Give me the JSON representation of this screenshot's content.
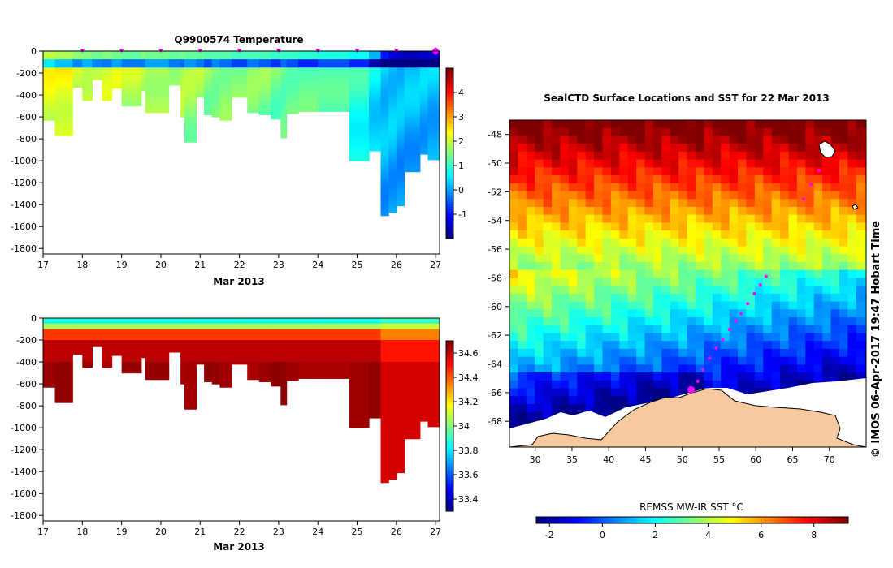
{
  "chart_data": [
    {
      "id": "temperature",
      "type": "heatmap",
      "title": "Q9900574  Temperature",
      "xlabel": "Mar 2013",
      "ylabel": "",
      "x_ticks": [
        "17",
        "18",
        "19",
        "20",
        "21",
        "22",
        "23",
        "24",
        "25",
        "26",
        "27"
      ],
      "xlim": [
        17,
        27.1
      ],
      "y_ticks": [
        "0",
        "-200",
        "-400",
        "-600",
        "-800",
        "-1000",
        "-1200",
        "-1400",
        "-1600",
        "-1800"
      ],
      "ylim": [
        -1850,
        0
      ],
      "colorbar_ticks": [
        "4",
        "3",
        "2",
        "1",
        "0",
        "-1"
      ],
      "colorbar_range": [
        -2,
        5
      ],
      "marker_days": [
        18,
        19,
        20,
        21,
        22,
        23,
        24,
        25,
        26,
        27
      ],
      "profiles": [
        {
          "day": 17.0,
          "bottom": -630,
          "surface": 1.9,
          "deep": 2.3
        },
        {
          "day": 17.3,
          "bottom": -770,
          "surface": 1.8,
          "deep": 2.4
        },
        {
          "day": 17.75,
          "bottom": -330,
          "surface": 1.6,
          "deep": 2.2
        },
        {
          "day": 18.0,
          "bottom": -450,
          "surface": 1.5,
          "deep": 2.2
        },
        {
          "day": 18.25,
          "bottom": -260,
          "surface": 1.4,
          "deep": 2.2
        },
        {
          "day": 18.5,
          "bottom": -450,
          "surface": 1.5,
          "deep": 2.1
        },
        {
          "day": 18.75,
          "bottom": -340,
          "surface": 1.4,
          "deep": 2.1
        },
        {
          "day": 19.0,
          "bottom": -500,
          "surface": 1.3,
          "deep": 2.0
        },
        {
          "day": 19.5,
          "bottom": -360,
          "surface": 1.5,
          "deep": 2.0
        },
        {
          "day": 19.6,
          "bottom": -560,
          "surface": 1.4,
          "deep": 2.0
        },
        {
          "day": 20.2,
          "bottom": -310,
          "surface": 1.3,
          "deep": 1.9
        },
        {
          "day": 20.5,
          "bottom": -600,
          "surface": 1.4,
          "deep": 1.9
        },
        {
          "day": 20.6,
          "bottom": -830,
          "surface": 1.3,
          "deep": 1.8
        },
        {
          "day": 20.9,
          "bottom": -420,
          "surface": 1.3,
          "deep": 1.8
        },
        {
          "day": 21.1,
          "bottom": -580,
          "surface": 1.2,
          "deep": 1.7
        },
        {
          "day": 21.3,
          "bottom": -600,
          "surface": 1.2,
          "deep": 1.7
        },
        {
          "day": 21.5,
          "bottom": -630,
          "surface": 1.2,
          "deep": 1.7
        },
        {
          "day": 21.8,
          "bottom": -420,
          "surface": 1.1,
          "deep": 1.6
        },
        {
          "day": 22.2,
          "bottom": -560,
          "surface": 1.1,
          "deep": 1.6
        },
        {
          "day": 22.5,
          "bottom": -580,
          "surface": 1.1,
          "deep": 1.6
        },
        {
          "day": 22.8,
          "bottom": -620,
          "surface": 1.0,
          "deep": 1.5
        },
        {
          "day": 23.05,
          "bottom": -790,
          "surface": 1.0,
          "deep": 1.5
        },
        {
          "day": 23.2,
          "bottom": -570,
          "surface": 1.0,
          "deep": 1.5
        },
        {
          "day": 23.5,
          "bottom": -550,
          "surface": 0.9,
          "deep": 1.4
        },
        {
          "day": 24.0,
          "bottom": -550,
          "surface": 0.8,
          "deep": 1.2
        },
        {
          "day": 24.8,
          "bottom": -1000,
          "surface": 0.7,
          "deep": 1.0
        },
        {
          "day": 25.3,
          "bottom": -910,
          "surface": 0.1,
          "deep": 0.6
        },
        {
          "day": 25.6,
          "bottom": -1500,
          "surface": -1.0,
          "deep": 0.4
        },
        {
          "day": 25.8,
          "bottom": -1470,
          "surface": -1.4,
          "deep": 0.4
        },
        {
          "day": 26.0,
          "bottom": -1410,
          "surface": -1.5,
          "deep": 0.3
        },
        {
          "day": 26.2,
          "bottom": -1100,
          "surface": -1.6,
          "deep": 0.3
        },
        {
          "day": 26.6,
          "bottom": -940,
          "surface": -1.5,
          "deep": 0.3
        },
        {
          "day": 26.8,
          "bottom": -990,
          "surface": -1.5,
          "deep": 0.3
        }
      ]
    },
    {
      "id": "salinity",
      "type": "heatmap",
      "title": "",
      "xlabel": "Mar 2013",
      "ylabel": "",
      "x_ticks": [
        "17",
        "18",
        "19",
        "20",
        "21",
        "22",
        "23",
        "24",
        "25",
        "26",
        "27"
      ],
      "xlim": [
        17,
        27.1
      ],
      "y_ticks": [
        "0",
        "-200",
        "-400",
        "-600",
        "-800",
        "-1000",
        "-1200",
        "-1400",
        "-1600",
        "-1800"
      ],
      "ylim": [
        -1850,
        0
      ],
      "colorbar_ticks": [
        "34.6",
        "34.4",
        "34.2",
        "34",
        "33.8",
        "33.6",
        "33.4"
      ],
      "colorbar_range": [
        33.3,
        34.7
      ]
    },
    {
      "id": "sst-map",
      "type": "heatmap",
      "title": "SealCTD Surface Locations and SST for 22 Mar 2013",
      "xlabel": "",
      "ylabel": "",
      "x_ticks": [
        "30",
        "35",
        "40",
        "45",
        "50",
        "55",
        "60",
        "65",
        "70"
      ],
      "xlim": [
        26.5,
        75
      ],
      "y_ticks": [
        "-48",
        "-50",
        "-52",
        "-54",
        "-56",
        "-58",
        "-60",
        "-62",
        "-64",
        "-66",
        "-68"
      ],
      "ylim": [
        -69.8,
        -47
      ],
      "colorbar_label": "REMSS MW-IR SST °C",
      "colorbar_ticks": [
        "-2",
        "0",
        "2",
        "4",
        "6",
        "8"
      ],
      "colorbar_range": [
        -2.5,
        9.3
      ],
      "track": [
        {
          "lon": 51.2,
          "lat": -65.8
        },
        {
          "lon": 52.1,
          "lat": -65.2
        },
        {
          "lon": 52.8,
          "lat": -64.4
        },
        {
          "lon": 53.7,
          "lat": -63.6
        },
        {
          "lon": 54.6,
          "lat": -62.9
        },
        {
          "lon": 55.5,
          "lat": -62.3
        },
        {
          "lon": 56.4,
          "lat": -61.6
        },
        {
          "lon": 57.3,
          "lat": -61.0
        },
        {
          "lon": 58.0,
          "lat": -60.5
        },
        {
          "lon": 58.9,
          "lat": -59.8
        },
        {
          "lon": 59.8,
          "lat": -59.1
        },
        {
          "lon": 60.6,
          "lat": -58.5
        },
        {
          "lon": 61.4,
          "lat": -57.9
        },
        {
          "lon": 66.5,
          "lat": -52.5
        },
        {
          "lon": 67.5,
          "lat": -51.5
        },
        {
          "lon": 68.6,
          "lat": -50.5
        }
      ],
      "current_position": {
        "lon": 51.2,
        "lat": -65.8
      }
    }
  ],
  "credit": "© IMOS 06-Apr-2017 19:47 Hobart Time"
}
